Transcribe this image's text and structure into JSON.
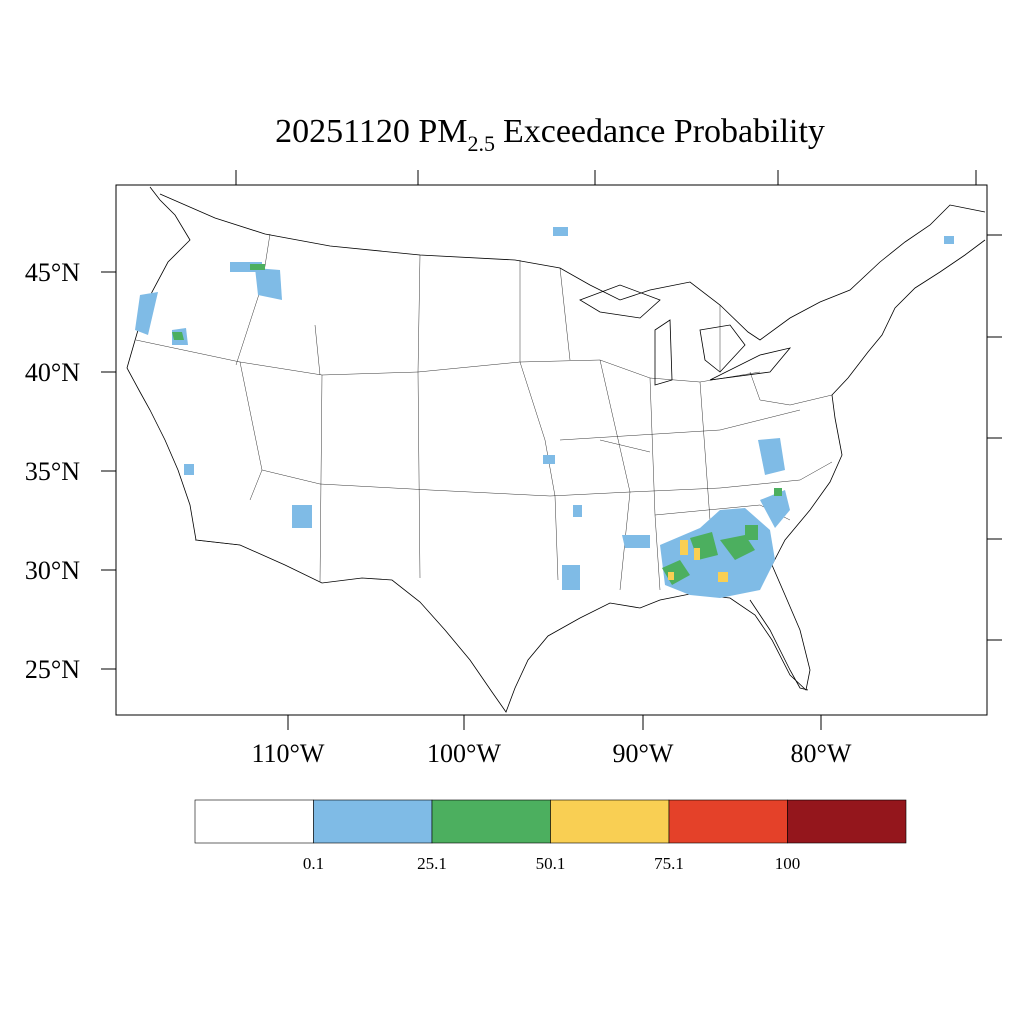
{
  "title": {
    "lead": "20251120 PM",
    "subscript": "2.5",
    "trail": "Exceedance Probability"
  },
  "lat_labels": [
    "45°N",
    "40°N",
    "35°N",
    "30°N",
    "25°N"
  ],
  "lon_labels": [
    "110°W",
    "100°W",
    "90°W",
    "80°W"
  ],
  "legend": {
    "colors": [
      "#ffffff",
      "#7fbbe6",
      "#4caf5f",
      "#f9cf53",
      "#e44129",
      "#94161c"
    ],
    "labels": [
      "0.1",
      "25.1",
      "50.1",
      "75.1",
      "100"
    ]
  }
}
